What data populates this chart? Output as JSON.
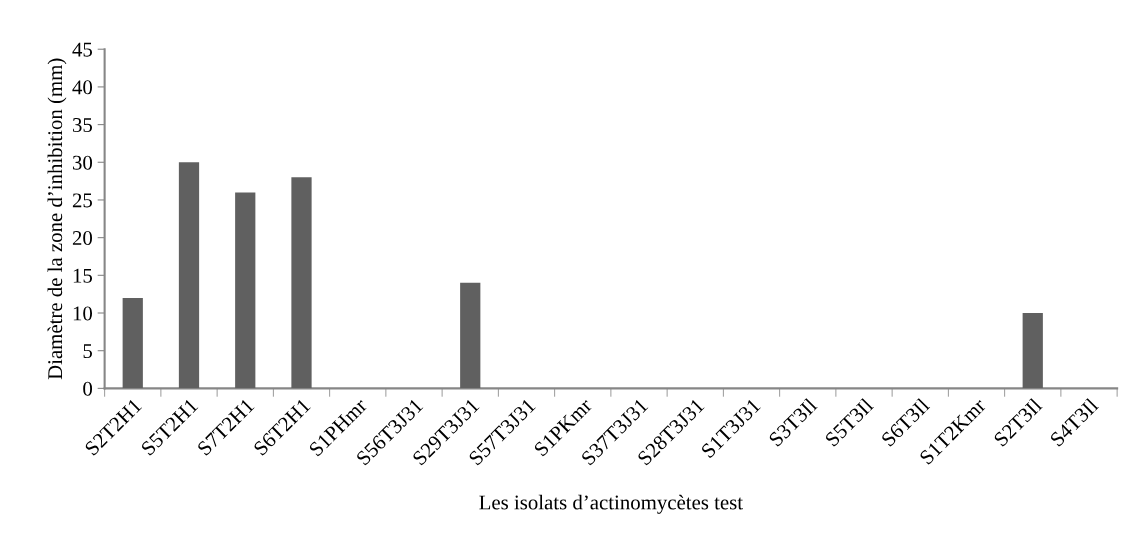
{
  "chart_data": {
    "type": "bar",
    "xlabel": "Les isolats d’actinomycètes test",
    "ylabel": "Diamètre de la zone d’inhibition (mm)",
    "categories": [
      "S2T2H1",
      "S5T2H1",
      "S7T2H1",
      "S6T2H1",
      "S1PHmr",
      "S56T3J31",
      "S29T3J31",
      "S57T3J31",
      "S1PKmr",
      "S37T3J31",
      "S28T3J31",
      "S1T3J31",
      "S3T3Il",
      "S5T3Il",
      "S6T3Il",
      "S1T2Kmr",
      "S2T3Il",
      "S4T3Il"
    ],
    "values": [
      12,
      30,
      26,
      28,
      0,
      0,
      14,
      0,
      0,
      0,
      0,
      0,
      0,
      0,
      0,
      0,
      10,
      0
    ],
    "color": "#606060",
    "ylim": [
      0,
      45
    ],
    "yticks": [
      0,
      5,
      10,
      15,
      20,
      25,
      30,
      35,
      40,
      45
    ],
    "grid": false,
    "legend": false
  }
}
